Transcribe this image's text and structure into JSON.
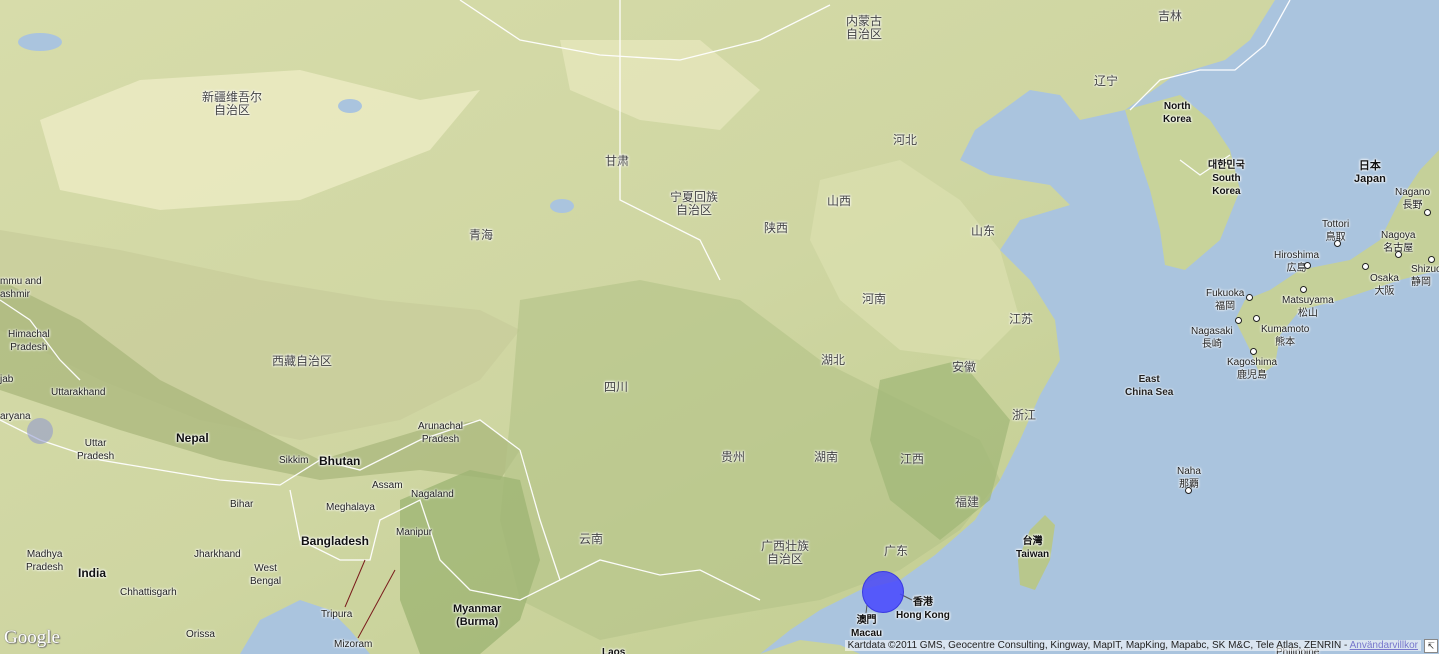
{
  "labels": [
    {
      "id": "inner-mongolia",
      "text": "内蒙古\n自治区",
      "cls": "cn"
    },
    {
      "id": "jilin",
      "text": "吉林",
      "cls": "cn"
    },
    {
      "id": "liaoning",
      "text": "辽宁",
      "cls": "cn"
    },
    {
      "id": "xinjiang",
      "text": "新疆维吾尔\n自治区",
      "cls": "cn"
    },
    {
      "id": "gansu",
      "text": "甘肃",
      "cls": "cn"
    },
    {
      "id": "ningxia",
      "text": "宁夏回族\n自治区",
      "cls": "cn"
    },
    {
      "id": "hebei",
      "text": "河北",
      "cls": "cn"
    },
    {
      "id": "shanxi",
      "text": "山西",
      "cls": "cn"
    },
    {
      "id": "shaanxi",
      "text": "陕西",
      "cls": "cn"
    },
    {
      "id": "qinghai",
      "text": "青海",
      "cls": "cn"
    },
    {
      "id": "shandong",
      "text": "山东",
      "cls": "cn"
    },
    {
      "id": "henan",
      "text": "河南",
      "cls": "cn"
    },
    {
      "id": "jiangsu",
      "text": "江苏",
      "cls": "cn"
    },
    {
      "id": "tibet",
      "text": "西藏自治区",
      "cls": "cn"
    },
    {
      "id": "hubei",
      "text": "湖北",
      "cls": "cn"
    },
    {
      "id": "anhui",
      "text": "安徽",
      "cls": "cn"
    },
    {
      "id": "sichuan",
      "text": "四川",
      "cls": "cn"
    },
    {
      "id": "zhejiang",
      "text": "浙江",
      "cls": "cn"
    },
    {
      "id": "guizhou",
      "text": "贵州",
      "cls": "cn"
    },
    {
      "id": "hunan",
      "text": "湖南",
      "cls": "cn"
    },
    {
      "id": "jiangxi",
      "text": "江西",
      "cls": "cn"
    },
    {
      "id": "fujian",
      "text": "福建",
      "cls": "cn"
    },
    {
      "id": "yunnan",
      "text": "云南",
      "cls": "cn"
    },
    {
      "id": "guangxi",
      "text": "广西壮族\n自治区",
      "cls": "cn"
    },
    {
      "id": "guangdong",
      "text": "广东",
      "cls": "cn"
    },
    {
      "id": "north-korea",
      "text": "North\nKorea",
      "cls": "country"
    },
    {
      "id": "south-korea",
      "text": "대한민국\nSouth\nKorea",
      "cls": "country"
    },
    {
      "id": "japan",
      "text": "日本\nJapan",
      "cls": "country"
    },
    {
      "id": "nepal",
      "text": "Nepal",
      "cls": "country"
    },
    {
      "id": "bhutan",
      "text": "Bhutan",
      "cls": "country"
    },
    {
      "id": "bangladesh",
      "text": "Bangladesh",
      "cls": "country"
    },
    {
      "id": "india",
      "text": "India",
      "cls": "country"
    },
    {
      "id": "myanmar",
      "text": "Myanmar\n(Burma)",
      "cls": "country"
    },
    {
      "id": "taiwan",
      "text": "台灣\nTaiwan",
      "cls": "country"
    },
    {
      "id": "hong-kong",
      "text": "香港\nHong Kong",
      "cls": "country"
    },
    {
      "id": "macau",
      "text": "澳門\nMacau",
      "cls": "country"
    },
    {
      "id": "east-china-sea",
      "text": "East\nChina Sea",
      "cls": "sea"
    },
    {
      "id": "jammu",
      "text": "mmu and\nashmir",
      "cls": "en"
    },
    {
      "id": "himachal",
      "text": "Himachal\nPradesh",
      "cls": "en"
    },
    {
      "id": "punjab",
      "text": "jab",
      "cls": "en"
    },
    {
      "id": "uttarakhand",
      "text": "Uttarakhand",
      "cls": "en"
    },
    {
      "id": "haryana",
      "text": "aryana",
      "cls": "en"
    },
    {
      "id": "uttar-pradesh",
      "text": "Uttar\nPradesh",
      "cls": "en"
    },
    {
      "id": "sikkim",
      "text": "Sikkim",
      "cls": "en"
    },
    {
      "id": "arunachal",
      "text": "Arunachal\nPradesh",
      "cls": "en"
    },
    {
      "id": "assam",
      "text": "Assam",
      "cls": "en"
    },
    {
      "id": "nagaland",
      "text": "Nagaland",
      "cls": "en"
    },
    {
      "id": "meghalaya",
      "text": "Meghalaya",
      "cls": "en"
    },
    {
      "id": "manipur",
      "text": "Manipur",
      "cls": "en"
    },
    {
      "id": "bihar",
      "text": "Bihar",
      "cls": "en"
    },
    {
      "id": "madhya",
      "text": "Madhya\nPradesh",
      "cls": "en"
    },
    {
      "id": "jharkhand",
      "text": "Jharkhand",
      "cls": "en"
    },
    {
      "id": "west-bengal",
      "text": "West\nBengal",
      "cls": "en"
    },
    {
      "id": "chhattisgarh",
      "text": "Chhattisgarh",
      "cls": "en"
    },
    {
      "id": "orissa",
      "text": "Orissa",
      "cls": "en"
    },
    {
      "id": "tripura",
      "text": "Tripura",
      "cls": "en"
    },
    {
      "id": "mizoram",
      "text": "Mizoram",
      "cls": "en"
    },
    {
      "id": "laos",
      "text": "Laos",
      "cls": "country"
    },
    {
      "id": "philippines",
      "text": "Philippine",
      "cls": "en"
    }
  ],
  "cities": [
    {
      "id": "nagano",
      "text": "Nagano\n長野"
    },
    {
      "id": "tottori",
      "text": "Tottori\n鳥取"
    },
    {
      "id": "nagoya",
      "text": "Nagoya\n名古屋"
    },
    {
      "id": "hiroshima",
      "text": "Hiroshima\n広島"
    },
    {
      "id": "shizuoka",
      "text": "Shizuo\n静岡"
    },
    {
      "id": "osaka",
      "text": "Osaka\n大阪"
    },
    {
      "id": "fukuoka",
      "text": "Fukuoka\n福岡"
    },
    {
      "id": "matsuyama",
      "text": "Matsuyama\n松山"
    },
    {
      "id": "nagasaki",
      "text": "Nagasaki\n長崎"
    },
    {
      "id": "kumamoto",
      "text": "Kumamoto\n熊本"
    },
    {
      "id": "kagoshima",
      "text": "Kagoshima\n鹿児島"
    },
    {
      "id": "naha",
      "text": "Naha\n那覇"
    }
  ],
  "logo": "Google",
  "attribution": {
    "text": "Kartdata ©2011 GMS, Geocentre Consulting, Kingway, MapIT, MapKing, Mapabc, SK M&C, Tele Atlas, ZENRIN - ",
    "link": "Användarvillkor"
  },
  "colors": {
    "sea": "#aac4de",
    "land": "#dfe3b4",
    "mountain": "#b9c08a",
    "forest": "#9fb873",
    "border": "#ffffff"
  }
}
